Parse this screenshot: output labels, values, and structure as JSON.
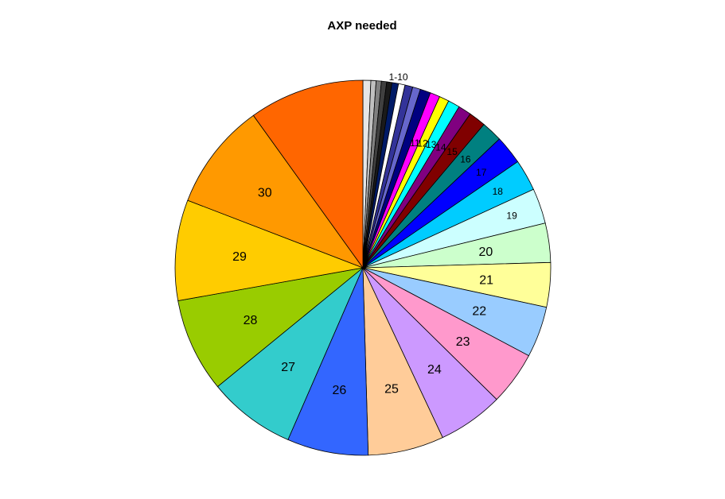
{
  "chart_data": {
    "type": "pie",
    "title": "AXP needed",
    "start": "top",
    "direction": "clockwise",
    "slices": [
      {
        "label": "",
        "value": 0.6,
        "color": "#e6e6e6"
      },
      {
        "label": "",
        "value": 0.4,
        "color": "#c0c0c0"
      },
      {
        "label": "",
        "value": 0.4,
        "color": "#808080"
      },
      {
        "label": "",
        "value": 0.4,
        "color": "#404040"
      },
      {
        "label": "",
        "value": 0.4,
        "color": "#1a1a1a"
      },
      {
        "label": "",
        "value": 0.5,
        "color": "#001a66"
      },
      {
        "label": "",
        "value": 0.5,
        "color": "#ffffff"
      },
      {
        "label": "",
        "value": 0.6,
        "color": "#333399"
      },
      {
        "label": "",
        "value": 0.6,
        "color": "#6666cc"
      },
      {
        "label": "",
        "value": 0.8,
        "color": "#000080"
      },
      {
        "label": "",
        "value": 0.75,
        "color": "#ff00ff"
      },
      {
        "label": "",
        "value": 0.75,
        "color": "#ffff00"
      },
      {
        "label": "",
        "value": 0.9,
        "color": "#00ffff"
      },
      {
        "label": "",
        "value": 1.0,
        "color": "#800080"
      },
      {
        "label": "",
        "value": 1.3,
        "color": "#800000"
      },
      {
        "label": "",
        "value": 1.6,
        "color": "#008080"
      },
      {
        "label": "",
        "value": 2.2,
        "color": "#0000ff"
      },
      {
        "label": "",
        "value": 2.4,
        "color": "#00ccff"
      },
      {
        "label": "",
        "value": 2.7,
        "color": "#ccffff"
      },
      {
        "label": "",
        "value": 3.0,
        "color": "#ccffcc"
      },
      {
        "label": "",
        "value": 3.4,
        "color": "#ffff99"
      },
      {
        "label": "",
        "value": 3.9,
        "color": "#99ccff"
      },
      {
        "label": "",
        "value": 4.1,
        "color": "#ff99cc"
      },
      {
        "label": "",
        "value": 5.0,
        "color": "#cc99ff"
      },
      {
        "label": "",
        "value": 5.8,
        "color": "#ffcc99"
      },
      {
        "label": "",
        "value": 6.2,
        "color": "#3366ff"
      },
      {
        "label": "",
        "value": 6.7,
        "color": "#33cccc"
      },
      {
        "label": "",
        "value": 7.2,
        "color": "#99cc00"
      },
      {
        "label": "",
        "value": 7.7,
        "color": "#ffcc00"
      },
      {
        "label": "",
        "value": 8.2,
        "color": "#ff9900"
      },
      {
        "label": "",
        "value": 8.8,
        "color": "#ff6600"
      }
    ],
    "labels": [
      {
        "text": "1-10",
        "slice_from": 0,
        "slice_to": 9,
        "size": "small",
        "outside": true
      },
      {
        "text": "11",
        "slice_from": 10,
        "slice_to": 10,
        "size": "small"
      },
      {
        "text": "12",
        "slice_from": 11,
        "slice_to": 11,
        "size": "small"
      },
      {
        "text": "13",
        "slice_from": 12,
        "slice_to": 12,
        "size": "small"
      },
      {
        "text": "14",
        "slice_from": 13,
        "slice_to": 13,
        "size": "small"
      },
      {
        "text": "15",
        "slice_from": 14,
        "slice_to": 14,
        "size": "small"
      },
      {
        "text": "16",
        "slice_from": 15,
        "slice_to": 15,
        "size": "small"
      },
      {
        "text": "17",
        "slice_from": 16,
        "slice_to": 16,
        "size": "small"
      },
      {
        "text": "18",
        "slice_from": 17,
        "slice_to": 17,
        "size": "small"
      },
      {
        "text": "19",
        "slice_from": 18,
        "slice_to": 18,
        "size": "small"
      },
      {
        "text": "20",
        "slice_from": 19,
        "slice_to": 19,
        "size": "large"
      },
      {
        "text": "21",
        "slice_from": 20,
        "slice_to": 20,
        "size": "large"
      },
      {
        "text": "22",
        "slice_from": 21,
        "slice_to": 21,
        "size": "large"
      },
      {
        "text": "23",
        "slice_from": 22,
        "slice_to": 22,
        "size": "large"
      },
      {
        "text": "24",
        "slice_from": 23,
        "slice_to": 23,
        "size": "large"
      },
      {
        "text": "25",
        "slice_from": 24,
        "slice_to": 24,
        "size": "large"
      },
      {
        "text": "26",
        "slice_from": 25,
        "slice_to": 25,
        "size": "large"
      },
      {
        "text": "27",
        "slice_from": 26,
        "slice_to": 26,
        "size": "large"
      },
      {
        "text": "28",
        "slice_from": 27,
        "slice_to": 27,
        "size": "large"
      },
      {
        "text": "29",
        "slice_from": 28,
        "slice_to": 28,
        "size": "large"
      },
      {
        "text": "30",
        "slice_from": 29,
        "slice_to": 29,
        "size": "large"
      }
    ]
  }
}
